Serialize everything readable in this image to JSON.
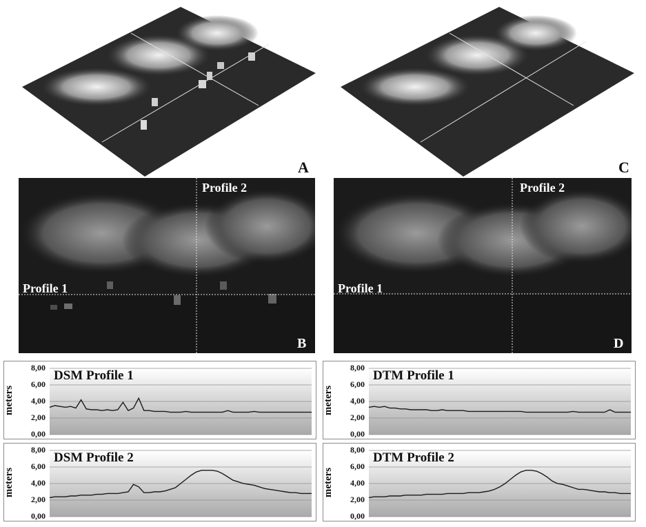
{
  "panels": {
    "A": {
      "letter": "A"
    },
    "C": {
      "letter": "C"
    },
    "B": {
      "letter": "B",
      "profile1_label": "Profile 1",
      "profile2_label": "Profile 2"
    },
    "D": {
      "letter": "D",
      "profile1_label": "Profile 1",
      "profile2_label": "Profile 2"
    }
  },
  "colors": {
    "line": "#1a1a1a",
    "plot_bg_top": "#ffffff",
    "plot_bg_bottom": "#a9a9a9",
    "grid": "#8f8f8f",
    "profile_line": "#e6e6e6"
  },
  "chart_data": [
    {
      "id": "dsm1",
      "type": "line",
      "title": "DSM Profile 1",
      "ylabel": "meters",
      "ylim": [
        0,
        8
      ],
      "yticks": [
        "0,00",
        "2,00",
        "4,00",
        "6,00",
        "8,00"
      ],
      "grid": true,
      "x": [
        0,
        2,
        4,
        6,
        8,
        10,
        12,
        14,
        16,
        18,
        20,
        22,
        24,
        26,
        28,
        30,
        32,
        34,
        36,
        38,
        40,
        42,
        44,
        46,
        48,
        50,
        52,
        54,
        56,
        58,
        60,
        62,
        64,
        66,
        68,
        70,
        72,
        74,
        76,
        78,
        80,
        82,
        84,
        86,
        88,
        90,
        92,
        94,
        96,
        98,
        100
      ],
      "values": [
        3.3,
        3.5,
        3.4,
        3.3,
        3.4,
        3.2,
        4.2,
        3.1,
        3.0,
        3.0,
        2.9,
        3.0,
        2.9,
        3.0,
        3.9,
        2.9,
        3.2,
        4.4,
        2.9,
        2.9,
        2.8,
        2.8,
        2.8,
        2.7,
        2.7,
        2.7,
        2.8,
        2.7,
        2.7,
        2.7,
        2.7,
        2.7,
        2.7,
        2.7,
        2.9,
        2.7,
        2.7,
        2.7,
        2.7,
        2.8,
        2.7,
        2.7,
        2.7,
        2.7,
        2.7,
        2.7,
        2.7,
        2.7,
        2.7,
        2.7,
        2.7
      ]
    },
    {
      "id": "dsm2",
      "type": "line",
      "title": "DSM Profile 2",
      "ylabel": "meters",
      "ylim": [
        0,
        8
      ],
      "yticks": [
        "0,00",
        "2,00",
        "4,00",
        "6,00",
        "8,00"
      ],
      "grid": true,
      "x": [
        0,
        2,
        4,
        6,
        8,
        10,
        12,
        14,
        16,
        18,
        20,
        22,
        24,
        26,
        28,
        30,
        32,
        34,
        36,
        38,
        40,
        42,
        44,
        46,
        48,
        50,
        52,
        54,
        56,
        58,
        60,
        62,
        64,
        66,
        68,
        70,
        72,
        74,
        76,
        78,
        80,
        82,
        84,
        86,
        88,
        90,
        92,
        94,
        96,
        98,
        100
      ],
      "values": [
        2.3,
        2.4,
        2.4,
        2.4,
        2.5,
        2.5,
        2.6,
        2.6,
        2.6,
        2.7,
        2.7,
        2.8,
        2.8,
        2.8,
        2.9,
        3.0,
        3.9,
        3.6,
        2.9,
        2.9,
        3.0,
        3.0,
        3.1,
        3.3,
        3.5,
        4.0,
        4.5,
        5.0,
        5.4,
        5.6,
        5.6,
        5.6,
        5.5,
        5.2,
        4.8,
        4.4,
        4.2,
        4.0,
        3.9,
        3.8,
        3.6,
        3.4,
        3.3,
        3.2,
        3.1,
        3.0,
        2.9,
        2.9,
        2.8,
        2.8,
        2.8
      ]
    },
    {
      "id": "dtm1",
      "type": "line",
      "title": "DTM Profile 1",
      "ylabel": "meters",
      "ylim": [
        0,
        8
      ],
      "yticks": [
        "0,00",
        "2,00",
        "4,00",
        "6,00",
        "8,00"
      ],
      "grid": true,
      "x": [
        0,
        2,
        4,
        6,
        8,
        10,
        12,
        14,
        16,
        18,
        20,
        22,
        24,
        26,
        28,
        30,
        32,
        34,
        36,
        38,
        40,
        42,
        44,
        46,
        48,
        50,
        52,
        54,
        56,
        58,
        60,
        62,
        64,
        66,
        68,
        70,
        72,
        74,
        76,
        78,
        80,
        82,
        84,
        86,
        88,
        90,
        92,
        94,
        96,
        98,
        100
      ],
      "values": [
        3.3,
        3.4,
        3.3,
        3.4,
        3.2,
        3.2,
        3.1,
        3.1,
        3.0,
        3.0,
        3.0,
        3.0,
        2.9,
        2.9,
        3.0,
        2.9,
        2.9,
        2.9,
        2.9,
        2.8,
        2.8,
        2.8,
        2.8,
        2.8,
        2.8,
        2.8,
        2.8,
        2.8,
        2.8,
        2.8,
        2.7,
        2.7,
        2.7,
        2.7,
        2.7,
        2.7,
        2.7,
        2.7,
        2.7,
        2.8,
        2.7,
        2.7,
        2.7,
        2.7,
        2.7,
        2.7,
        3.0,
        2.7,
        2.7,
        2.7,
        2.7
      ]
    },
    {
      "id": "dtm2",
      "type": "line",
      "title": "DTM Profile 2",
      "ylabel": "meters",
      "ylim": [
        0,
        8
      ],
      "yticks": [
        "0,00",
        "2,00",
        "4,00",
        "6,00",
        "8,00"
      ],
      "grid": true,
      "x": [
        0,
        2,
        4,
        6,
        8,
        10,
        12,
        14,
        16,
        18,
        20,
        22,
        24,
        26,
        28,
        30,
        32,
        34,
        36,
        38,
        40,
        42,
        44,
        46,
        48,
        50,
        52,
        54,
        56,
        58,
        60,
        62,
        64,
        66,
        68,
        70,
        72,
        74,
        76,
        78,
        80,
        82,
        84,
        86,
        88,
        90,
        92,
        94,
        96,
        98,
        100
      ],
      "values": [
        2.3,
        2.4,
        2.4,
        2.4,
        2.5,
        2.5,
        2.5,
        2.6,
        2.6,
        2.6,
        2.6,
        2.7,
        2.7,
        2.7,
        2.7,
        2.8,
        2.8,
        2.8,
        2.8,
        2.9,
        2.9,
        2.9,
        3.0,
        3.1,
        3.3,
        3.6,
        4.0,
        4.5,
        5.0,
        5.4,
        5.6,
        5.6,
        5.5,
        5.2,
        4.8,
        4.3,
        4.0,
        3.9,
        3.7,
        3.5,
        3.3,
        3.3,
        3.2,
        3.1,
        3.0,
        3.0,
        2.9,
        2.9,
        2.8,
        2.8,
        2.8
      ]
    }
  ]
}
